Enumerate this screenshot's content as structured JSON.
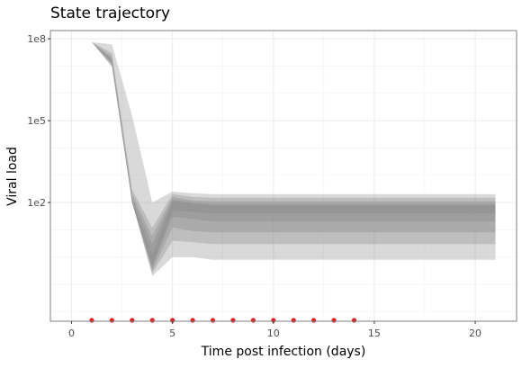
{
  "chart_data": {
    "type": "area",
    "title": "State trajectory",
    "xlabel": "Time post infection (days)",
    "ylabel": "Viral load",
    "x_ticks": [
      0,
      5,
      10,
      15,
      20
    ],
    "y_ticks": [
      {
        "value": 100,
        "label": "1e2"
      },
      {
        "value": 100000,
        "label": "1e5"
      },
      {
        "value": 100000000,
        "label": "1e8"
      }
    ],
    "y_scale": "log10",
    "xlim": [
      -1.05,
      22.05
    ],
    "ylim_log10": [
      -2.35,
      8.3
    ],
    "grid": true,
    "colors": {
      "band": "#808080",
      "observation": "#e31a1c",
      "panel_border": "#7f7f7f",
      "grid": "#ebebeb"
    },
    "x": [
      1,
      2,
      3,
      4,
      5,
      6,
      7,
      8,
      9,
      10,
      11,
      12,
      13,
      14,
      15,
      16,
      17,
      18,
      19,
      20,
      21
    ],
    "series": [
      {
        "lower": [
          75000000,
          9000000,
          100,
          0.2,
          1.0,
          1.0,
          0.8,
          0.8,
          0.8,
          0.8,
          0.8,
          0.8,
          0.8,
          0.8,
          0.8,
          0.8,
          0.8,
          0.8,
          0.8,
          0.8,
          0.8
        ],
        "upper": [
          75000000,
          63000000,
          150000,
          100,
          250,
          220,
          200,
          200,
          200,
          200,
          200,
          200,
          200,
          200,
          200,
          200,
          200,
          200,
          200,
          200,
          200
        ]
      },
      {
        "lower": [
          75000000,
          10000000,
          100,
          0.25,
          4,
          3.5,
          3,
          3,
          3,
          3,
          3,
          3,
          3,
          3,
          3,
          3,
          3,
          3,
          3,
          3,
          3
        ],
        "upper": [
          75000000,
          30000000,
          300,
          12,
          200,
          160,
          150,
          150,
          150,
          150,
          150,
          150,
          150,
          150,
          150,
          150,
          150,
          150,
          150,
          150,
          150
        ]
      },
      {
        "lower": [
          75000000,
          11000000,
          100,
          0.3,
          12,
          9,
          8,
          8,
          8,
          8,
          8,
          8,
          8,
          8,
          8,
          8,
          8,
          8,
          8,
          8,
          8
        ],
        "upper": [
          75000000,
          22000000,
          200,
          6,
          160,
          120,
          110,
          110,
          110,
          110,
          110,
          110,
          110,
          110,
          110,
          110,
          110,
          110,
          110,
          110,
          110
        ]
      },
      {
        "lower": [
          75000000,
          13000000,
          100,
          0.4,
          30,
          25,
          20,
          20,
          20,
          20,
          20,
          20,
          20,
          20,
          20,
          20,
          20,
          20,
          20,
          20,
          20
        ],
        "upper": [
          75000000,
          18000000,
          150,
          3,
          130,
          100,
          90,
          90,
          90,
          90,
          90,
          90,
          90,
          90,
          90,
          90,
          90,
          90,
          90,
          90,
          90
        ]
      },
      {
        "lower": [
          75000000,
          14000000,
          100,
          0.45,
          50,
          45,
          40,
          40,
          40,
          40,
          40,
          40,
          40,
          40,
          40,
          40,
          40,
          40,
          40,
          40,
          40
        ],
        "upper": [
          75000000,
          16000000,
          120,
          1.2,
          110,
          90,
          80,
          80,
          80,
          80,
          80,
          80,
          80,
          80,
          80,
          80,
          80,
          80,
          80,
          80,
          80
        ]
      }
    ],
    "observations": {
      "x": [
        1,
        2,
        3,
        4,
        5,
        6,
        7,
        8,
        9,
        10,
        11,
        12,
        13,
        14
      ],
      "y_position": "bottom"
    }
  }
}
